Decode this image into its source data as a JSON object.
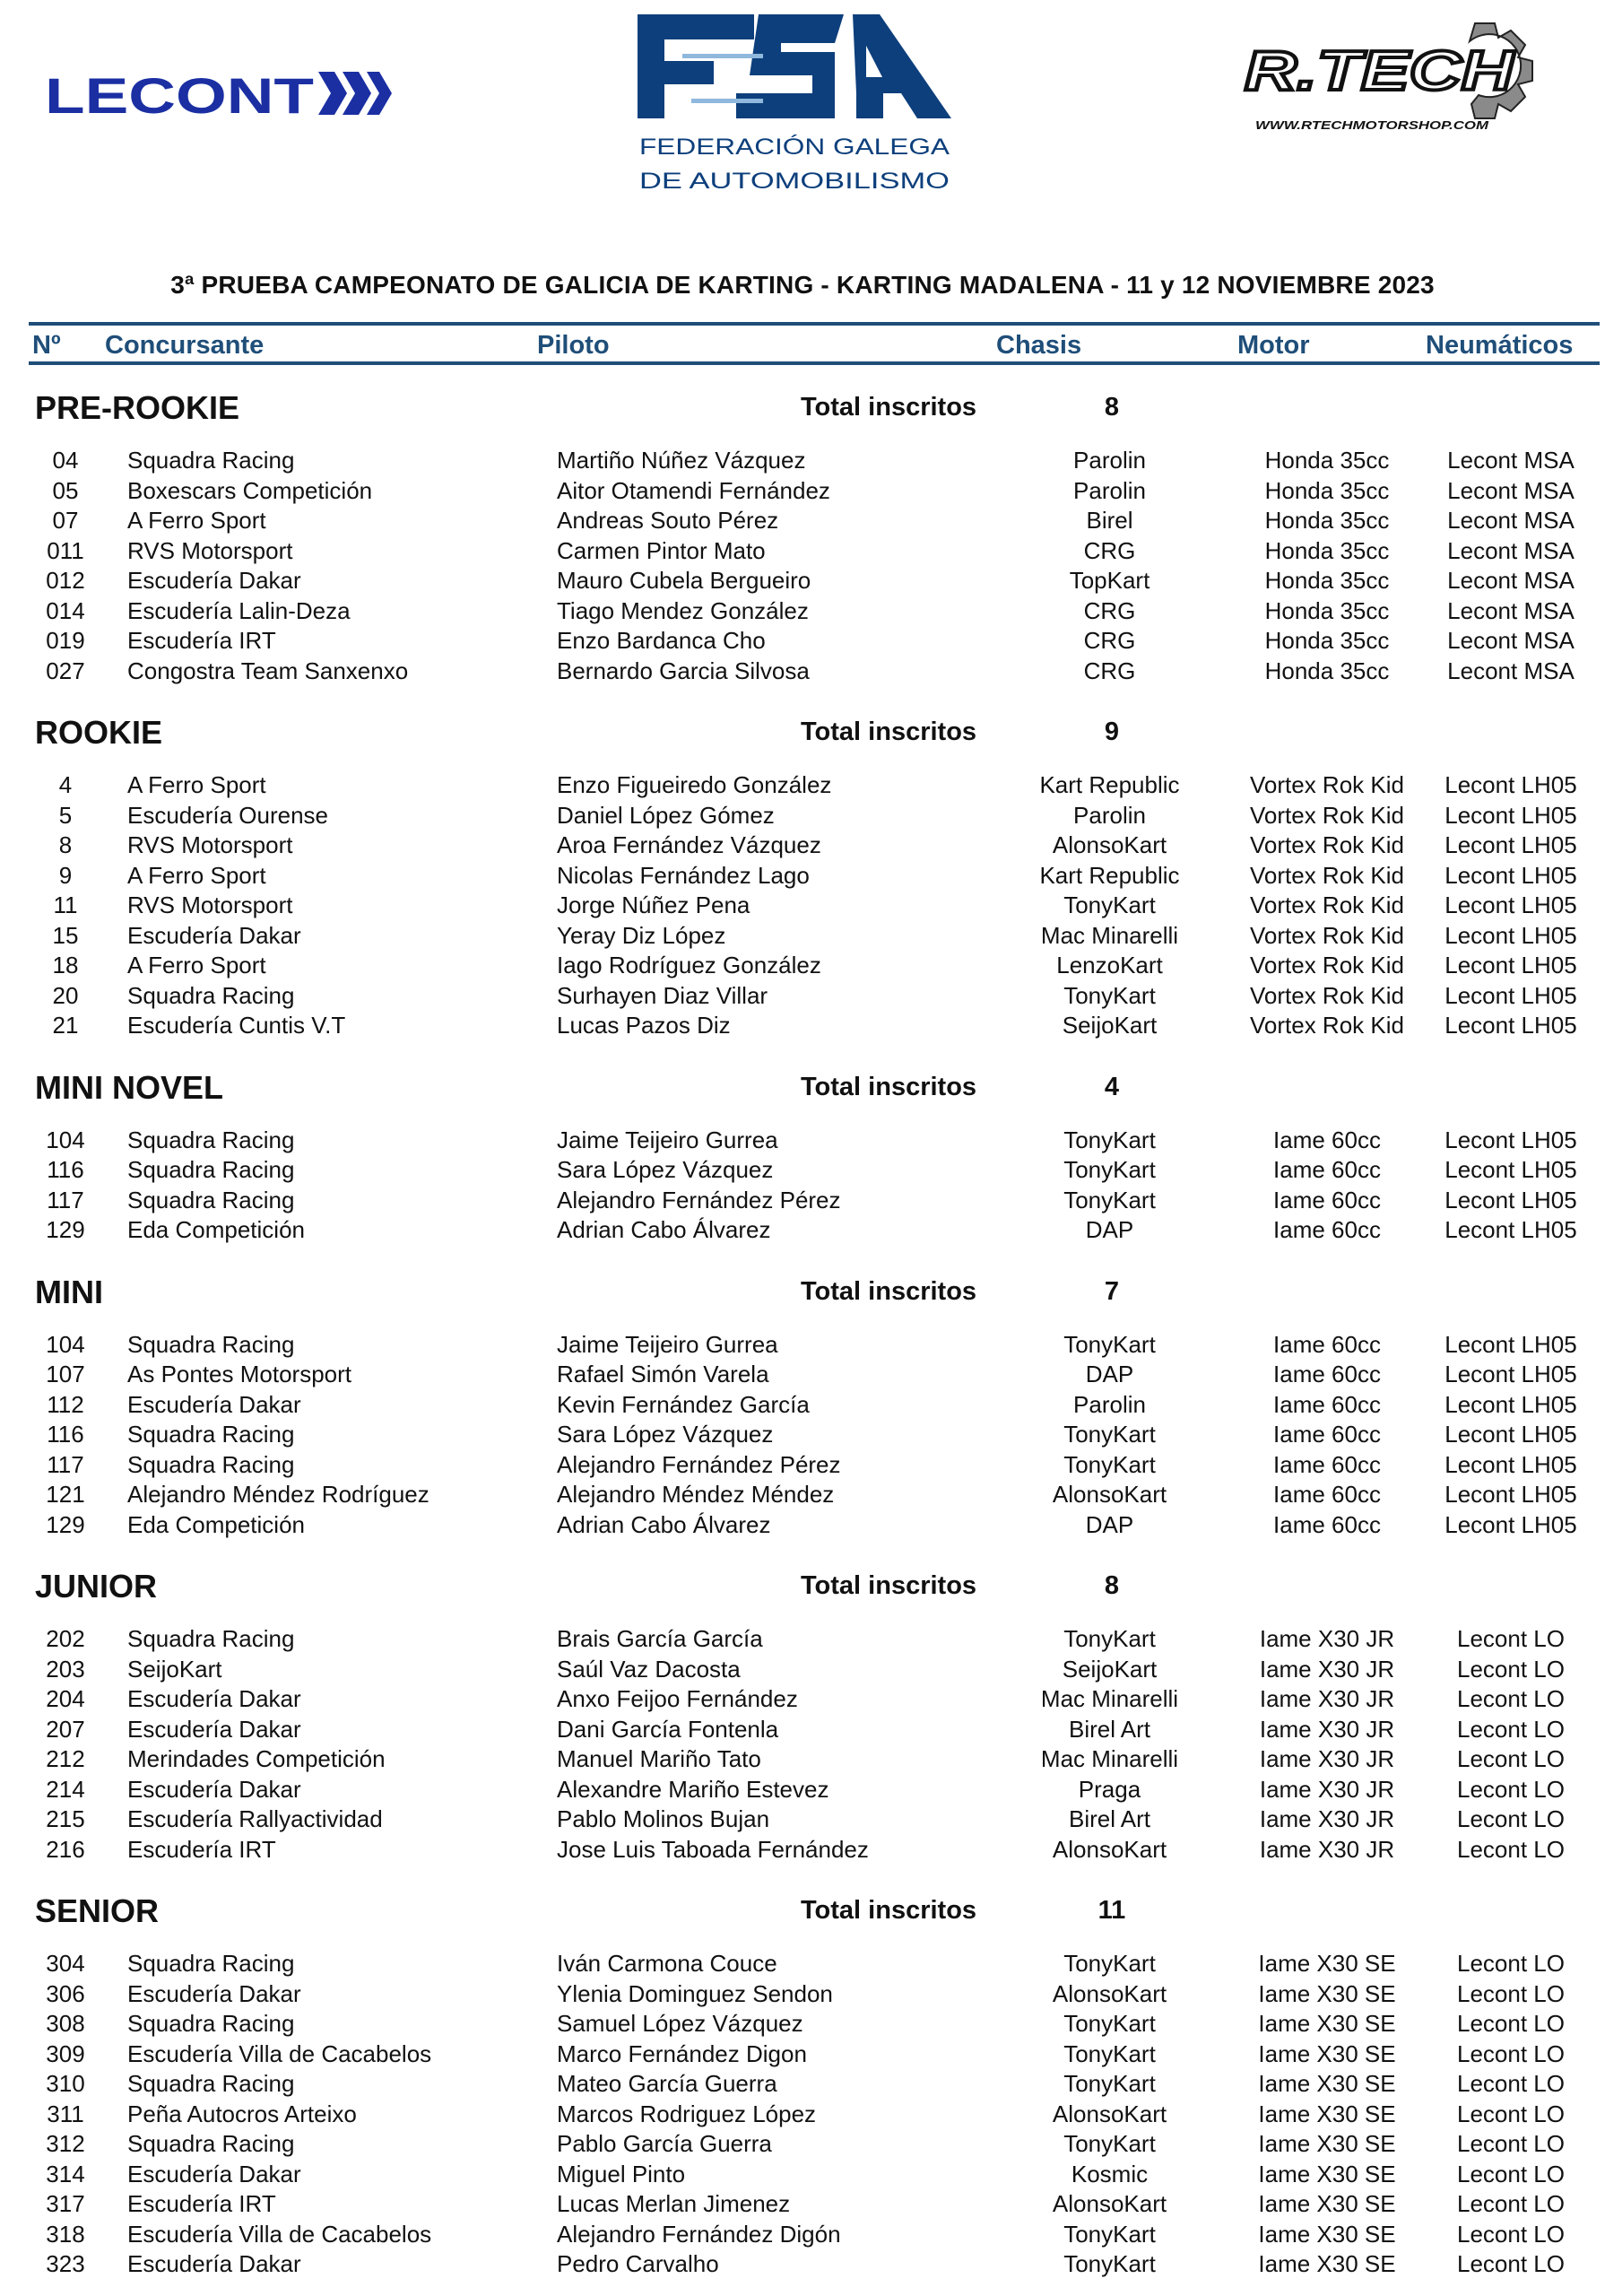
{
  "logos": {
    "left": "LECONT",
    "center_mark": "FGA",
    "center_line1": "FEDERACIÓN GALEGA",
    "center_line2": "DE AUTOMOBILISMO",
    "right": "R.TECH",
    "right_url": "WWW.RTECHMOTORSHOP.COM"
  },
  "colors": {
    "header_blue": "#1f4e79",
    "fga_blue": "#0d3f7c",
    "lecont_blue": "#1b2fa3",
    "gear_gray": "#8a8a8a"
  },
  "title": "3ª PRUEBA CAMPEONATO DE GALICIA DE KARTING - KARTING MADALENA - 11 y 12 NOVIEMBRE 2023",
  "columns": {
    "num": "Nº",
    "team": "Concursante",
    "pilot": "Piloto",
    "chasis": "Chasis",
    "motor": "Motor",
    "tyres": "Neumáticos"
  },
  "total_label": "Total inscritos",
  "sections": [
    {
      "name": "PRE-ROOKIE",
      "total": "8",
      "rows": [
        [
          "04",
          "Squadra Racing",
          "Martiño Núñez Vázquez",
          "Parolin",
          "Honda 35cc",
          "Lecont MSA"
        ],
        [
          "05",
          "Boxescars Competición",
          "Aitor Otamendi Fernández",
          "Parolin",
          "Honda 35cc",
          "Lecont MSA"
        ],
        [
          "07",
          "A Ferro Sport",
          "Andreas Souto Pérez",
          "Birel",
          "Honda 35cc",
          "Lecont MSA"
        ],
        [
          "011",
          "RVS Motorsport",
          "Carmen Pintor Mato",
          "CRG",
          "Honda 35cc",
          "Lecont MSA"
        ],
        [
          "012",
          "Escudería Dakar",
          "Mauro Cubela Bergueiro",
          "TopKart",
          "Honda 35cc",
          "Lecont MSA"
        ],
        [
          "014",
          "Escudería Lalin-Deza",
          "Tiago Mendez González",
          "CRG",
          "Honda 35cc",
          "Lecont MSA"
        ],
        [
          "019",
          "Escudería IRT",
          "Enzo Bardanca Cho",
          "CRG",
          "Honda 35cc",
          "Lecont MSA"
        ],
        [
          "027",
          "Congostra Team Sanxenxo",
          "Bernardo Garcia Silvosa",
          "CRG",
          "Honda 35cc",
          "Lecont MSA"
        ]
      ]
    },
    {
      "name": "ROOKIE",
      "total": "9",
      "rows": [
        [
          "4",
          "A Ferro Sport",
          "Enzo Figueiredo González",
          "Kart Republic",
          "Vortex Rok Kid",
          "Lecont LH05"
        ],
        [
          "5",
          "Escudería Ourense",
          "Daniel López Gómez",
          "Parolin",
          "Vortex Rok Kid",
          "Lecont LH05"
        ],
        [
          "8",
          "RVS Motorsport",
          "Aroa Fernández Vázquez",
          "AlonsoKart",
          "Vortex Rok Kid",
          "Lecont LH05"
        ],
        [
          "9",
          "A Ferro Sport",
          "Nicolas Fernández Lago",
          "Kart Republic",
          "Vortex Rok Kid",
          "Lecont LH05"
        ],
        [
          "11",
          "RVS Motorsport",
          "Jorge Núñez Pena",
          "TonyKart",
          "Vortex Rok Kid",
          "Lecont LH05"
        ],
        [
          "15",
          "Escudería Dakar",
          "Yeray Diz López",
          "Mac Minarelli",
          "Vortex Rok Kid",
          "Lecont LH05"
        ],
        [
          "18",
          "A Ferro Sport",
          "Iago Rodríguez González",
          "LenzoKart",
          "Vortex Rok Kid",
          "Lecont LH05"
        ],
        [
          "20",
          "Squadra Racing",
          "Surhayen Diaz Villar",
          "TonyKart",
          "Vortex Rok Kid",
          "Lecont LH05"
        ],
        [
          "21",
          "Escudería Cuntis V.T",
          "Lucas Pazos Diz",
          "SeijoKart",
          "Vortex Rok Kid",
          "Lecont LH05"
        ]
      ]
    },
    {
      "name": "MINI NOVEL",
      "total": "4",
      "rows": [
        [
          "104",
          "Squadra Racing",
          "Jaime Teijeiro Gurrea",
          "TonyKart",
          "Iame 60cc",
          "Lecont LH05"
        ],
        [
          "116",
          "Squadra Racing",
          "Sara López Vázquez",
          "TonyKart",
          "Iame 60cc",
          "Lecont LH05"
        ],
        [
          "117",
          "Squadra Racing",
          "Alejandro Fernández Pérez",
          "TonyKart",
          "Iame 60cc",
          "Lecont LH05"
        ],
        [
          "129",
          "Eda Competición",
          "Adrian Cabo Álvarez",
          "DAP",
          "Iame 60cc",
          "Lecont LH05"
        ]
      ]
    },
    {
      "name": "MINI",
      "total": "7",
      "rows": [
        [
          "104",
          "Squadra Racing",
          "Jaime Teijeiro Gurrea",
          "TonyKart",
          "Iame 60cc",
          "Lecont LH05"
        ],
        [
          "107",
          "As Pontes Motorsport",
          "Rafael Simón Varela",
          "DAP",
          "Iame 60cc",
          "Lecont LH05"
        ],
        [
          "112",
          "Escudería Dakar",
          "Kevin Fernández García",
          "Parolin",
          "Iame 60cc",
          "Lecont LH05"
        ],
        [
          "116",
          "Squadra Racing",
          "Sara López Vázquez",
          "TonyKart",
          "Iame 60cc",
          "Lecont LH05"
        ],
        [
          "117",
          "Squadra Racing",
          "Alejandro Fernández Pérez",
          "TonyKart",
          "Iame 60cc",
          "Lecont LH05"
        ],
        [
          "121",
          "Alejandro Méndez Rodríguez",
          "Alejandro Méndez Méndez",
          "AlonsoKart",
          "Iame 60cc",
          "Lecont LH05"
        ],
        [
          "129",
          "Eda Competición",
          "Adrian Cabo Álvarez",
          "DAP",
          "Iame 60cc",
          "Lecont LH05"
        ]
      ]
    },
    {
      "name": "JUNIOR",
      "total": "8",
      "rows": [
        [
          "202",
          "Squadra Racing",
          "Brais García García",
          "TonyKart",
          "Iame X30 JR",
          "Lecont LO"
        ],
        [
          "203",
          "SeijoKart",
          "Saúl Vaz Dacosta",
          "SeijoKart",
          "Iame X30 JR",
          "Lecont LO"
        ],
        [
          "204",
          "Escudería Dakar",
          "Anxo Feijoo Fernández",
          "Mac Minarelli",
          "Iame X30 JR",
          "Lecont LO"
        ],
        [
          "207",
          "Escudería Dakar",
          "Dani García Fontenla",
          "Birel Art",
          "Iame X30 JR",
          "Lecont LO"
        ],
        [
          "212",
          "Merindades Competición",
          "Manuel Mariño Tato",
          "Mac Minarelli",
          "Iame X30 JR",
          "Lecont LO"
        ],
        [
          "214",
          "Escudería Dakar",
          "Alexandre Mariño Estevez",
          "Praga",
          "Iame X30 JR",
          "Lecont LO"
        ],
        [
          "215",
          "Escudería Rallyactividad",
          "Pablo Molinos Bujan",
          "Birel Art",
          "Iame X30 JR",
          "Lecont LO"
        ],
        [
          "216",
          "Escudería IRT",
          "Jose Luis Taboada Fernández",
          "AlonsoKart",
          "Iame X30 JR",
          "Lecont LO"
        ]
      ]
    },
    {
      "name": "SENIOR",
      "total": "11",
      "rows": [
        [
          "304",
          "Squadra Racing",
          "Iván Carmona Couce",
          "TonyKart",
          "Iame X30 SE",
          "Lecont LO"
        ],
        [
          "306",
          "Escudería Dakar",
          "Ylenia Dominguez Sendon",
          "AlonsoKart",
          "Iame X30 SE",
          "Lecont LO"
        ],
        [
          "308",
          "Squadra Racing",
          "Samuel López Vázquez",
          "TonyKart",
          "Iame X30 SE",
          "Lecont LO"
        ],
        [
          "309",
          "Escudería Villa de Cacabelos",
          "Marco Fernández Digon",
          "TonyKart",
          "Iame X30 SE",
          "Lecont LO"
        ],
        [
          "310",
          "Squadra Racing",
          "Mateo García Guerra",
          "TonyKart",
          "Iame X30 SE",
          "Lecont LO"
        ],
        [
          "311",
          "Peña Autocros Arteixo",
          "Marcos Rodriguez López",
          "AlonsoKart",
          "Iame X30 SE",
          "Lecont LO"
        ],
        [
          "312",
          "Squadra Racing",
          "Pablo García Guerra",
          "TonyKart",
          "Iame X30 SE",
          "Lecont LO"
        ],
        [
          "314",
          "Escudería Dakar",
          "Miguel Pinto",
          "Kosmic",
          "Iame X30 SE",
          "Lecont LO"
        ],
        [
          "317",
          "Escudería IRT",
          "Lucas Merlan Jimenez",
          "AlonsoKart",
          "Iame X30 SE",
          "Lecont LO"
        ],
        [
          "318",
          "Escudería Villa de Cacabelos",
          "Alejandro Fernández Digón",
          "TonyKart",
          "Iame X30 SE",
          "Lecont LO"
        ],
        [
          "323",
          "Escudería Dakar",
          "Pedro Carvalho",
          "TonyKart",
          "Iame X30 SE",
          "Lecont LO"
        ]
      ]
    }
  ]
}
